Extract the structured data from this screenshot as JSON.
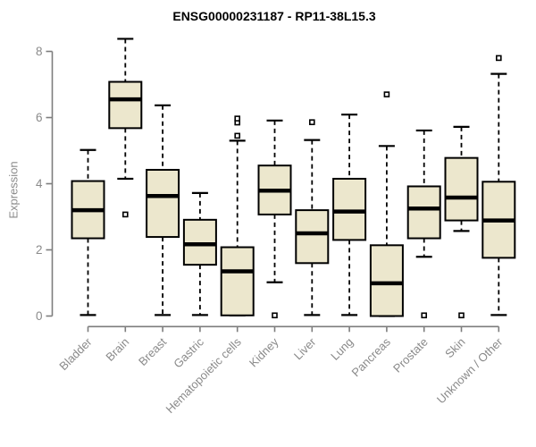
{
  "chart_data": {
    "type": "boxplot",
    "title": "ENSG00000231187 - RP11-38L15.3",
    "ylabel": "Expression",
    "xlabel": "",
    "ylim": [
      0,
      8
    ],
    "yticks": [
      0,
      2,
      4,
      6,
      8
    ],
    "grid": false,
    "legend": "none",
    "categories": [
      "Bladder",
      "Brain",
      "Breast",
      "Gastric",
      "Hematopoietic cells",
      "Kidney",
      "Liver",
      "Lung",
      "Pancreas",
      "Prostate",
      "Skin",
      "Unknown / Other"
    ],
    "boxes": [
      {
        "category": "Bladder",
        "whisker_low": 0.03,
        "q1": 2.35,
        "median": 3.2,
        "q3": 4.08,
        "whisker_high": 5.02,
        "outliers": []
      },
      {
        "category": "Brain",
        "whisker_low": 4.15,
        "q1": 5.68,
        "median": 6.55,
        "q3": 7.08,
        "whisker_high": 8.38,
        "outliers": [
          3.07
        ]
      },
      {
        "category": "Breast",
        "whisker_low": 0.03,
        "q1": 2.39,
        "median": 3.63,
        "q3": 4.42,
        "whisker_high": 6.37,
        "outliers": []
      },
      {
        "category": "Gastric",
        "whisker_low": 0.03,
        "q1": 1.55,
        "median": 2.17,
        "q3": 2.91,
        "whisker_high": 3.72,
        "outliers": []
      },
      {
        "category": "Hematopoietic cells",
        "whisker_low": 0.02,
        "q1": 0.02,
        "median": 1.35,
        "q3": 2.08,
        "whisker_high": 5.3,
        "outliers": [
          5.45,
          5.85,
          5.97
        ]
      },
      {
        "category": "Kidney",
        "whisker_low": 1.02,
        "q1": 3.07,
        "median": 3.79,
        "q3": 4.55,
        "whisker_high": 5.91,
        "outliers": [
          0.02
        ]
      },
      {
        "category": "Liver",
        "whisker_low": 0.03,
        "q1": 1.6,
        "median": 2.5,
        "q3": 3.2,
        "whisker_high": 5.32,
        "outliers": [
          5.86
        ]
      },
      {
        "category": "Lung",
        "whisker_low": 0.03,
        "q1": 2.3,
        "median": 3.16,
        "q3": 4.15,
        "whisker_high": 6.09,
        "outliers": []
      },
      {
        "category": "Pancreas",
        "whisker_low": 0.0,
        "q1": 0.0,
        "median": 0.99,
        "q3": 2.14,
        "whisker_high": 5.14,
        "outliers": [
          6.7
        ]
      },
      {
        "category": "Prostate",
        "whisker_low": 1.79,
        "q1": 2.35,
        "median": 3.25,
        "q3": 3.92,
        "whisker_high": 5.61,
        "outliers": [
          0.02
        ]
      },
      {
        "category": "Skin",
        "whisker_low": 2.57,
        "q1": 2.89,
        "median": 3.58,
        "q3": 4.78,
        "whisker_high": 5.72,
        "outliers": [
          0.02
        ]
      },
      {
        "category": "Unknown / Other",
        "whisker_low": 0.03,
        "q1": 1.76,
        "median": 2.89,
        "q3": 4.06,
        "whisker_high": 7.32,
        "outliers": [
          7.8
        ]
      }
    ],
    "colors": {
      "box_fill": "#ece7cd",
      "box_border": "#000000",
      "median": "#000000",
      "whisker": "#000000",
      "outlier_stroke": "#000000",
      "outlier_fill": "#ffffff",
      "axis": "#7d7d7d",
      "tick_label": "#8a8a8a",
      "title": "#000000",
      "background": "#ffffff"
    }
  }
}
